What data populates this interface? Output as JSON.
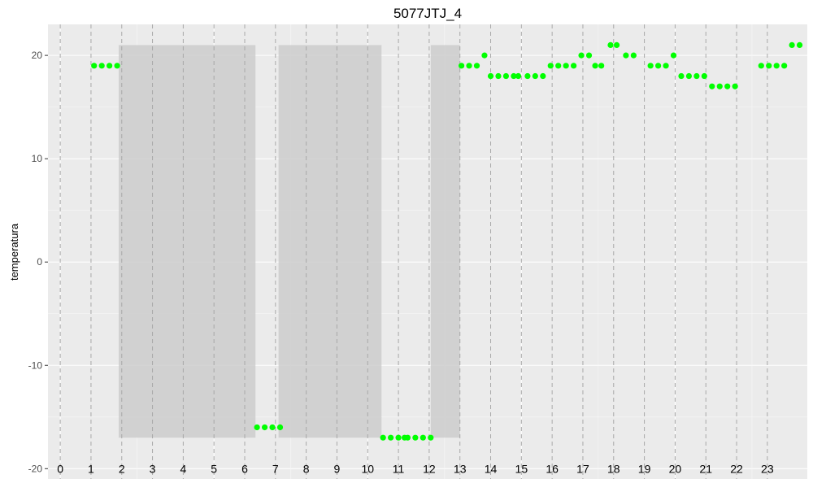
{
  "chart_data": {
    "type": "scatter",
    "title": "5077JTJ_4",
    "xlabel": "",
    "ylabel": "temperatura",
    "xlim": [
      -0.4,
      24.3
    ],
    "ylim": [
      -21,
      23
    ],
    "grid": true,
    "y_ticks": [
      -20,
      -10,
      0,
      10,
      20
    ],
    "y_tick_labels": [
      "-20",
      "-10",
      "0",
      "10",
      "20"
    ],
    "hour_marks": [
      0,
      1,
      2,
      3,
      4,
      5,
      6,
      7,
      8,
      9,
      10,
      11,
      12,
      13,
      14,
      15,
      16,
      17,
      18,
      19,
      20,
      21,
      22,
      23
    ],
    "hour_labels": [
      "0",
      "1",
      "2",
      "3",
      "4",
      "5",
      "6",
      "7",
      "8",
      "9",
      "10",
      "11",
      "12",
      "13",
      "14",
      "15",
      "16",
      "17",
      "18",
      "19",
      "20",
      "21",
      "22",
      "23"
    ],
    "hour_labels_y": -20,
    "shaded_regions": [
      {
        "x": [
          1.9,
          6.35
        ],
        "y": [
          -17,
          21
        ]
      },
      {
        "x": [
          7.1,
          10.45
        ],
        "y": [
          -17,
          21
        ]
      },
      {
        "x": [
          12.05,
          13.0
        ],
        "y": [
          -17,
          21
        ]
      }
    ],
    "point_color": "#00ff00",
    "band_color": "#cccccc",
    "panel_color": "#ebebeb",
    "points": [
      {
        "x": 1.1,
        "y": 19
      },
      {
        "x": 1.35,
        "y": 19
      },
      {
        "x": 1.6,
        "y": 19
      },
      {
        "x": 1.85,
        "y": 19
      },
      {
        "x": 6.4,
        "y": -16
      },
      {
        "x": 6.65,
        "y": -16
      },
      {
        "x": 6.9,
        "y": -16
      },
      {
        "x": 7.15,
        "y": -16
      },
      {
        "x": 10.5,
        "y": -17
      },
      {
        "x": 10.75,
        "y": -17
      },
      {
        "x": 11.0,
        "y": -17
      },
      {
        "x": 11.2,
        "y": -17
      },
      {
        "x": 11.3,
        "y": -17
      },
      {
        "x": 11.55,
        "y": -17
      },
      {
        "x": 11.8,
        "y": -17
      },
      {
        "x": 12.05,
        "y": -17
      },
      {
        "x": 13.05,
        "y": 19
      },
      {
        "x": 13.3,
        "y": 19
      },
      {
        "x": 13.55,
        "y": 19
      },
      {
        "x": 13.8,
        "y": 20
      },
      {
        "x": 14.0,
        "y": 18
      },
      {
        "x": 14.25,
        "y": 18
      },
      {
        "x": 14.5,
        "y": 18
      },
      {
        "x": 14.75,
        "y": 18
      },
      {
        "x": 14.9,
        "y": 18
      },
      {
        "x": 15.2,
        "y": 18
      },
      {
        "x": 15.45,
        "y": 18
      },
      {
        "x": 15.7,
        "y": 18
      },
      {
        "x": 15.95,
        "y": 19
      },
      {
        "x": 16.2,
        "y": 19
      },
      {
        "x": 16.45,
        "y": 19
      },
      {
        "x": 16.7,
        "y": 19
      },
      {
        "x": 16.95,
        "y": 20
      },
      {
        "x": 17.2,
        "y": 20
      },
      {
        "x": 17.4,
        "y": 19
      },
      {
        "x": 17.6,
        "y": 19
      },
      {
        "x": 17.9,
        "y": 21
      },
      {
        "x": 18.1,
        "y": 21
      },
      {
        "x": 18.4,
        "y": 20
      },
      {
        "x": 18.65,
        "y": 20
      },
      {
        "x": 19.2,
        "y": 19
      },
      {
        "x": 19.45,
        "y": 19
      },
      {
        "x": 19.7,
        "y": 19
      },
      {
        "x": 19.95,
        "y": 20
      },
      {
        "x": 20.2,
        "y": 18
      },
      {
        "x": 20.45,
        "y": 18
      },
      {
        "x": 20.7,
        "y": 18
      },
      {
        "x": 20.95,
        "y": 18
      },
      {
        "x": 21.2,
        "y": 17
      },
      {
        "x": 21.45,
        "y": 17
      },
      {
        "x": 21.7,
        "y": 17
      },
      {
        "x": 21.95,
        "y": 17
      },
      {
        "x": 22.8,
        "y": 19
      },
      {
        "x": 23.05,
        "y": 19
      },
      {
        "x": 23.3,
        "y": 19
      },
      {
        "x": 23.55,
        "y": 19
      },
      {
        "x": 23.8,
        "y": 21
      },
      {
        "x": 24.05,
        "y": 21
      }
    ]
  }
}
